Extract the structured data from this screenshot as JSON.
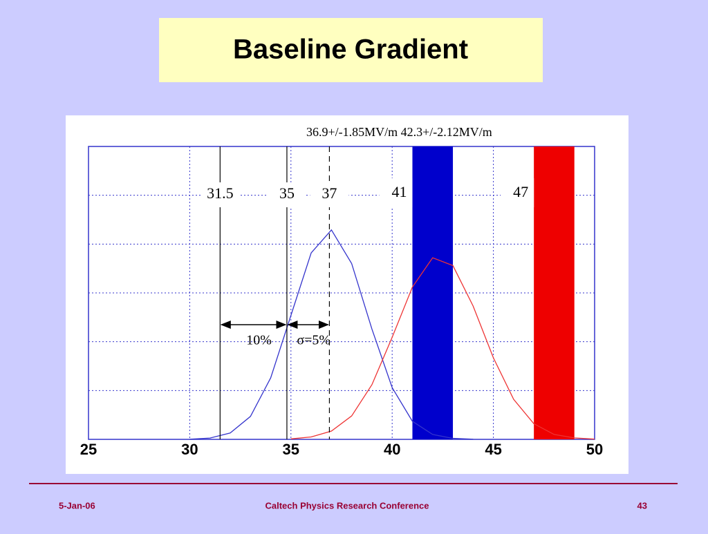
{
  "slide": {
    "title": "Baseline Gradient",
    "footer_left": "5-Jan-06",
    "footer_center": "Caltech Physics Research Conference",
    "page_number": "43"
  },
  "chart_data": {
    "type": "line",
    "annotation": "36.9+/-1.85MV/m  42.3+/-2.12MV/m",
    "xlim": [
      25,
      50
    ],
    "xticks": [
      25,
      30,
      35,
      40,
      45,
      50
    ],
    "ylim": [
      0,
      6
    ],
    "yticks": [
      0,
      1,
      2,
      3,
      4,
      5,
      6
    ],
    "show_ytick_labels": false,
    "grid": true,
    "curves": [
      {
        "color": "#3333cc",
        "x": [
          30,
          31,
          32,
          33,
          34,
          35,
          36,
          37,
          38,
          39,
          40,
          41,
          42,
          43,
          44
        ],
        "values": [
          0.004,
          0.027,
          0.13,
          0.47,
          1.26,
          2.54,
          3.82,
          4.29,
          3.6,
          2.26,
          1.06,
          0.37,
          0.1,
          0.02,
          0.003
        ]
      },
      {
        "color": "#ee3333",
        "x": [
          35,
          36,
          37,
          38,
          39,
          40,
          41,
          42,
          43,
          44,
          45,
          46,
          47,
          48,
          49,
          50
        ],
        "values": [
          0.01,
          0.05,
          0.17,
          0.48,
          1.12,
          2.09,
          3.12,
          3.72,
          3.56,
          2.73,
          1.67,
          0.82,
          0.32,
          0.1,
          0.03,
          0.005
        ]
      }
    ],
    "vlines": [
      {
        "x": 31.5,
        "label": "31.5",
        "style": "solid"
      },
      {
        "x": 34.8,
        "label": "35",
        "style": "solid"
      },
      {
        "x": 36.9,
        "label": "37",
        "style": "dashed"
      }
    ],
    "bands": [
      {
        "from": 41,
        "to": 43,
        "label": "41",
        "color": "#0000cc"
      },
      {
        "from": 47,
        "to": 49,
        "label": "47",
        "color": "#ee0000"
      }
    ],
    "spans": [
      {
        "from": 31.5,
        "to": 34.8,
        "label": "10%"
      },
      {
        "from": 34.8,
        "to": 36.9,
        "label": "σ=5%"
      }
    ]
  }
}
